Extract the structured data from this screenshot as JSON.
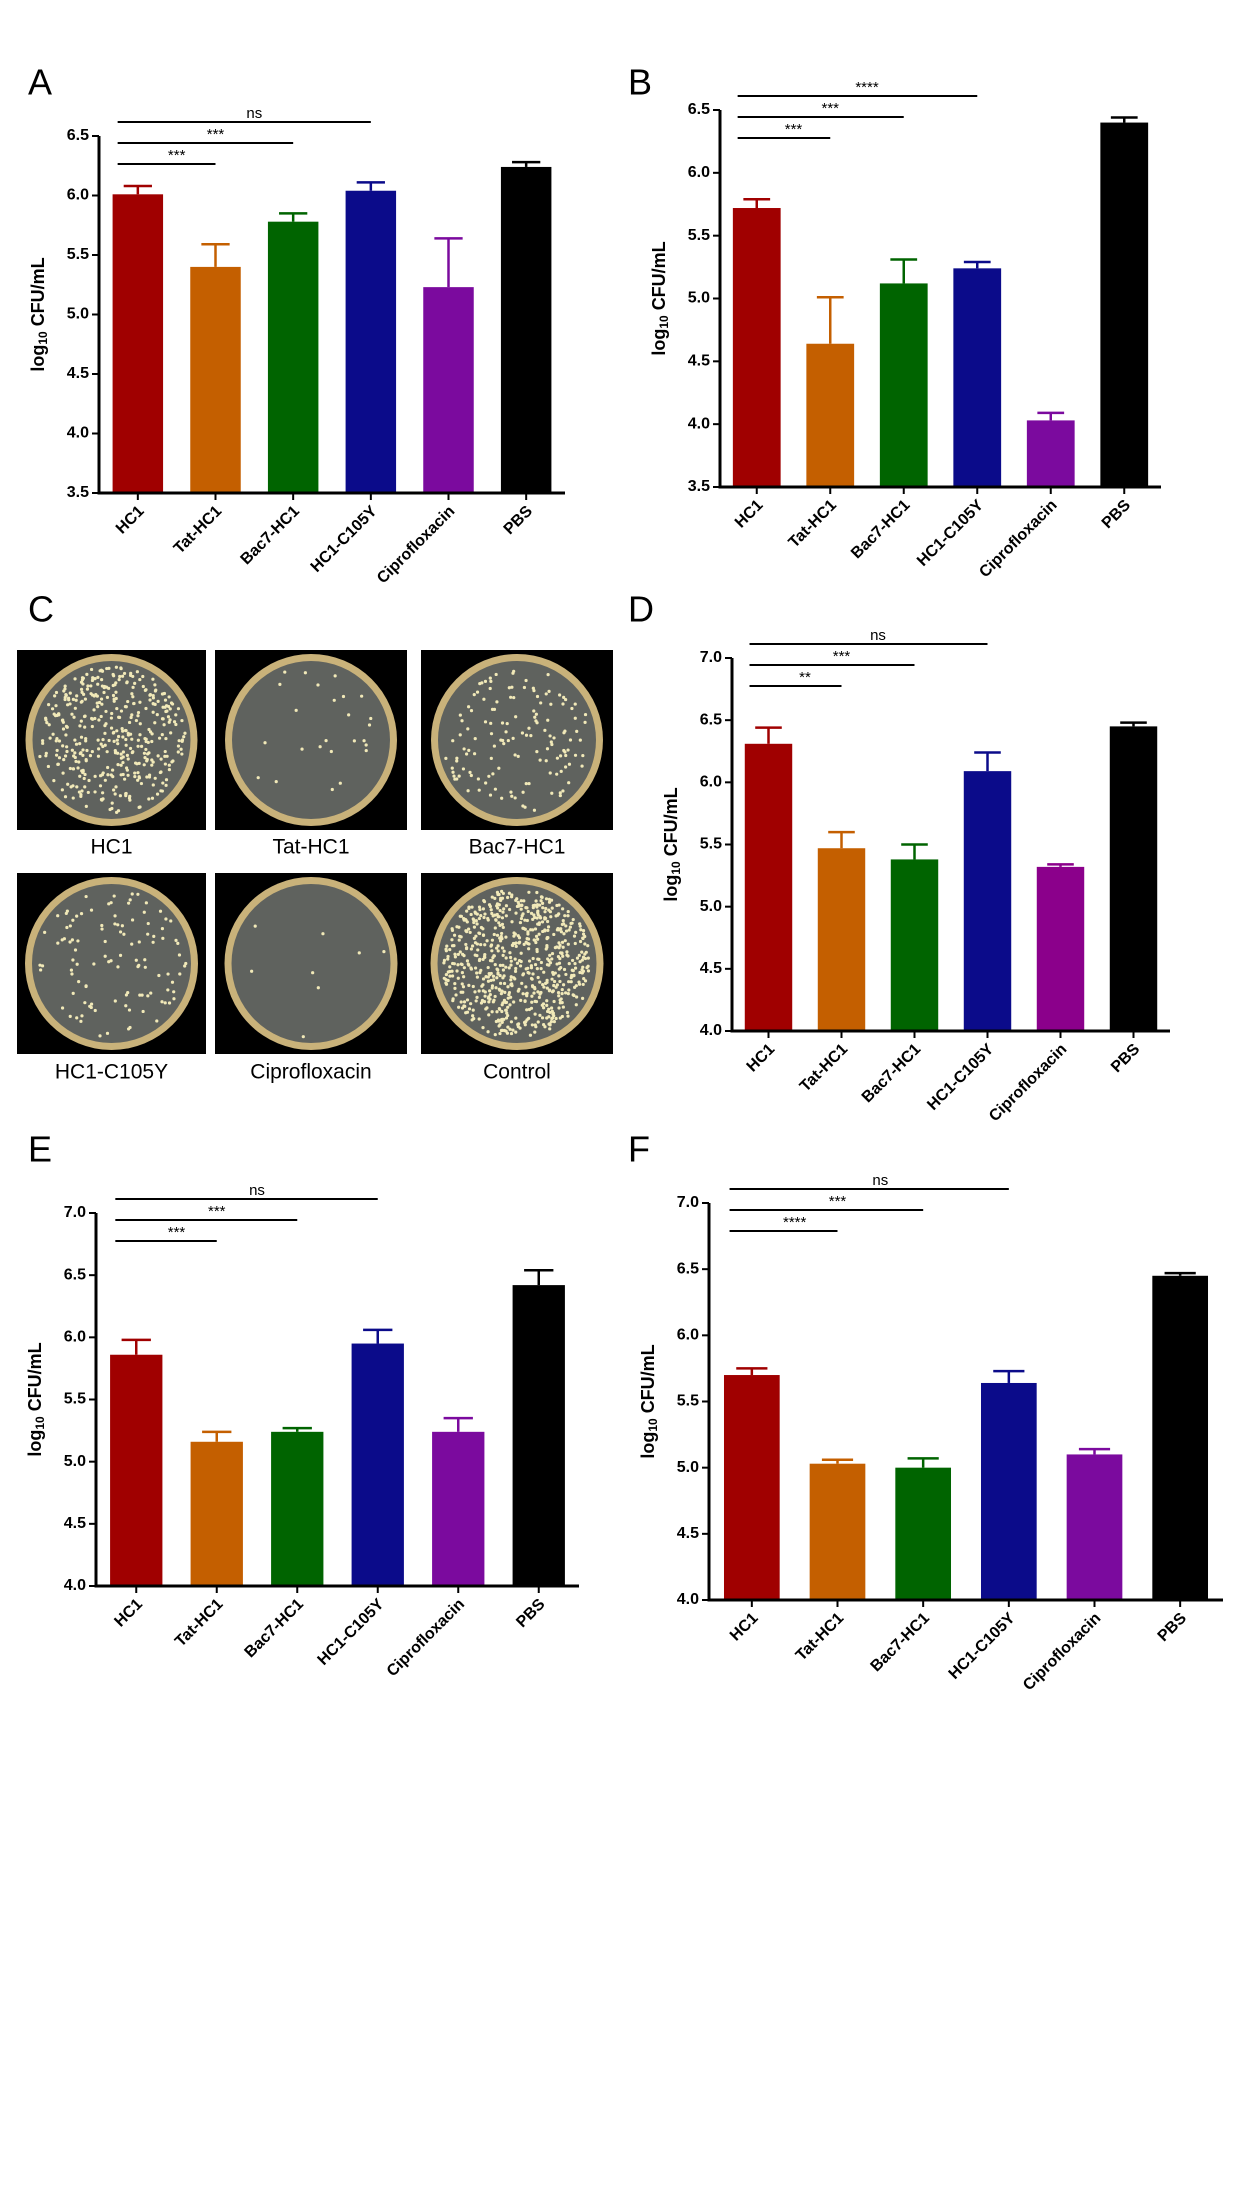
{
  "chart_data": [
    {
      "type": "bar",
      "panel": "A",
      "ylabel": [
        "log",
        "10",
        " CFU/mL"
      ],
      "categories": [
        "HC1",
        "Tat-HC1",
        "Bac7-HC1",
        "HC1-C105Y",
        "Ciprofloxacin",
        "PBS"
      ],
      "values": [
        6.01,
        5.4,
        5.78,
        6.04,
        5.23,
        6.24
      ],
      "errors": [
        0.07,
        0.19,
        0.07,
        0.07,
        0.41,
        0.04
      ],
      "colors": [
        "#a00000",
        "#c45f00",
        "#006400",
        "#0b0b8a",
        "#7b0a9e",
        "#000000"
      ],
      "ylim": [
        3.5,
        6.5
      ],
      "yticks": [
        3.5,
        {
          "value": 4,
          "label": "4.0"
        },
        4.5,
        {
          "value": 5,
          "label": "5.0"
        },
        5.5,
        {
          "value": 6,
          "label": "6.0"
        },
        6.5
      ],
      "annotations": [
        {
          "label": "***",
          "from": "HC1",
          "to": "Tat-HC1"
        },
        {
          "label": "***",
          "from": "HC1",
          "to": "Bac7-HC1"
        },
        {
          "label": "ns",
          "from": "HC1",
          "to": "HC1-C105Y"
        }
      ]
    },
    {
      "type": "bar",
      "panel": "B",
      "ylabel": [
        "log",
        "10",
        " CFU/mL"
      ],
      "categories": [
        "HC1",
        "Tat-HC1",
        "Bac7-HC1",
        "HC1-C105Y",
        "Ciprofloxacin",
        "PBS"
      ],
      "values": [
        5.72,
        4.64,
        5.12,
        5.24,
        4.03,
        6.4
      ],
      "errors": [
        0.07,
        0.37,
        0.19,
        0.05,
        0.06,
        0.04
      ],
      "colors": [
        "#a00000",
        "#c45f00",
        "#006400",
        "#0b0b8a",
        "#7b0a9e",
        "#000000"
      ],
      "ylim": [
        3.5,
        6.5
      ],
      "yticks": [
        3.5,
        {
          "value": 4,
          "label": "4.0"
        },
        4.5,
        {
          "value": 5,
          "label": "5.0"
        },
        5.5,
        {
          "value": 6,
          "label": "6.0"
        },
        6.5
      ],
      "annotations": [
        {
          "label": "***",
          "from": "HC1",
          "to": "Tat-HC1"
        },
        {
          "label": "***",
          "from": "HC1",
          "to": "Bac7-HC1"
        },
        {
          "label": "****",
          "from": "HC1",
          "to": "HC1-C105Y"
        }
      ]
    },
    {
      "type": "bar",
      "panel": "D",
      "ylabel": [
        "log",
        "10",
        " CFU/mL"
      ],
      "categories": [
        "HC1",
        "Tat-HC1",
        "Bac7-HC1",
        "HC1-C105Y",
        "Ciprofloxacin",
        "PBS"
      ],
      "values": [
        6.31,
        5.47,
        5.38,
        6.09,
        5.32,
        6.45
      ],
      "errors": [
        0.13,
        0.13,
        0.12,
        0.15,
        0.02,
        0.03
      ],
      "colors": [
        "#a00000",
        "#c45f00",
        "#006400",
        "#0b0b8a",
        "#8b008b",
        "#000000"
      ],
      "ylim": [
        4,
        7
      ],
      "yticks": [
        {
          "value": 4,
          "label": "4.0"
        },
        4.5,
        {
          "value": 5,
          "label": "5.0"
        },
        5.5,
        {
          "value": 6,
          "label": "6.0"
        },
        6.5,
        {
          "value": 7,
          "label": "7.0"
        }
      ],
      "annotations": [
        {
          "label": "**",
          "from": "HC1",
          "to": "Tat-HC1"
        },
        {
          "label": "***",
          "from": "HC1",
          "to": "Bac7-HC1"
        },
        {
          "label": "ns",
          "from": "HC1",
          "to": "HC1-C105Y"
        }
      ]
    },
    {
      "type": "bar",
      "panel": "E",
      "ylabel": [
        "log",
        "10",
        " CFU/mL"
      ],
      "categories": [
        "HC1",
        "Tat-HC1",
        "Bac7-HC1",
        "HC1-C105Y",
        "Ciprofloxacin",
        "PBS"
      ],
      "values": [
        5.86,
        5.16,
        5.24,
        5.95,
        5.24,
        6.42
      ],
      "errors": [
        0.12,
        0.08,
        0.03,
        0.11,
        0.11,
        0.12
      ],
      "colors": [
        "#a00000",
        "#c45f00",
        "#006400",
        "#0b0b8a",
        "#7b0a9e",
        "#000000"
      ],
      "ylim": [
        4,
        7
      ],
      "yticks": [
        {
          "value": 4,
          "label": "4.0"
        },
        4.5,
        {
          "value": 5,
          "label": "5.0"
        },
        5.5,
        {
          "value": 6,
          "label": "6.0"
        },
        6.5,
        {
          "value": 7,
          "label": "7.0"
        }
      ],
      "annotations": [
        {
          "label": "***",
          "from": "HC1",
          "to": "Tat-HC1"
        },
        {
          "label": "***",
          "from": "HC1",
          "to": "Bac7-HC1"
        },
        {
          "label": "ns",
          "from": "HC1",
          "to": "HC1-C105Y"
        }
      ]
    },
    {
      "type": "bar",
      "panel": "F",
      "ylabel": [
        "log",
        "10",
        " CFU/mL"
      ],
      "categories": [
        "HC1",
        "Tat-HC1",
        "Bac7-HC1",
        "HC1-C105Y",
        "Ciprofloxacin",
        "PBS"
      ],
      "values": [
        5.7,
        5.03,
        5.0,
        5.64,
        5.1,
        6.45
      ],
      "errors": [
        0.05,
        0.03,
        0.07,
        0.09,
        0.04,
        0.02
      ],
      "colors": [
        "#a00000",
        "#c45f00",
        "#006400",
        "#0b0b8a",
        "#7b0a9e",
        "#000000"
      ],
      "ylim": [
        4,
        7
      ],
      "yticks": [
        {
          "value": 4,
          "label": "4.0"
        },
        4.5,
        {
          "value": 5,
          "label": "5.0"
        },
        5.5,
        {
          "value": 6,
          "label": "6.0"
        },
        6.5,
        {
          "value": 7,
          "label": "7.0"
        }
      ],
      "annotations": [
        {
          "label": "****",
          "from": "HC1",
          "to": "Tat-HC1"
        },
        {
          "label": "***",
          "from": "HC1",
          "to": "Bac7-HC1"
        },
        {
          "label": "ns",
          "from": "HC1",
          "to": "HC1-C105Y"
        }
      ]
    }
  ],
  "plates": {
    "label": "C",
    "captions": [
      "HC1",
      "Tat-HC1",
      "Bac7-HC1",
      "HC1-C105Y",
      "Ciprofloxacin",
      "Control"
    ]
  }
}
